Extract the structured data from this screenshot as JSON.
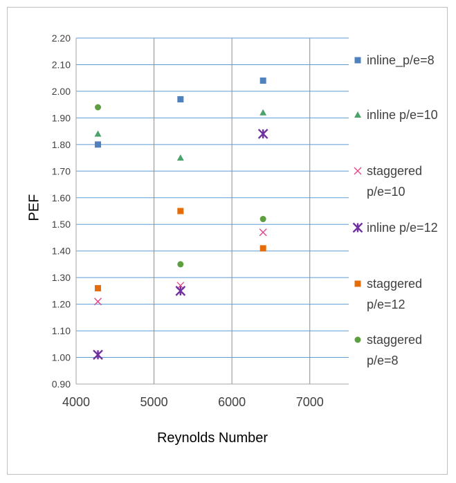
{
  "chart_data": {
    "type": "scatter",
    "title": "",
    "xlabel": "Reynolds Number",
    "ylabel": "PEF",
    "xlim": [
      4000,
      7500
    ],
    "ylim": [
      0.9,
      2.2
    ],
    "x_ticks": [
      "4000",
      "5000",
      "6000",
      "7000"
    ],
    "y_ticks": [
      "0.90",
      "1.00",
      "1.10",
      "1.20",
      "1.30",
      "1.40",
      "1.50",
      "1.60",
      "1.70",
      "1.80",
      "1.90",
      "2.00",
      "2.10",
      "2.20"
    ],
    "grid": true,
    "legend_position": "right",
    "series": [
      {
        "name": "inline_p/e=8",
        "marker": "square",
        "color": "#4f81bd",
        "x": [
          4280,
          5340,
          6400
        ],
        "y": [
          1.8,
          1.97,
          2.04
        ]
      },
      {
        "name": "inline p/e=10",
        "marker": "triangle",
        "color": "#4ba36c",
        "x": [
          4280,
          5340,
          6400
        ],
        "y": [
          1.84,
          1.75,
          1.92
        ]
      },
      {
        "name": "staggered p/e=10",
        "marker": "x",
        "color": "#e0448a",
        "x": [
          4280,
          5340,
          6400
        ],
        "y": [
          1.21,
          1.27,
          1.47
        ]
      },
      {
        "name": "inline p/e=12",
        "marker": "star",
        "color": "#7030a0",
        "x": [
          4280,
          5340,
          6400
        ],
        "y": [
          1.01,
          1.25,
          1.84
        ]
      },
      {
        "name": "staggered p/e=12",
        "marker": "square",
        "color": "#e46c0a",
        "x": [
          4280,
          5340,
          6400
        ],
        "y": [
          1.26,
          1.55,
          1.41
        ]
      },
      {
        "name": "staggered p/e=8",
        "marker": "circle",
        "color": "#5d9e3f",
        "x": [
          4280,
          5340,
          6400
        ],
        "y": [
          1.94,
          1.35,
          1.52
        ]
      }
    ],
    "legend_lines": [
      [
        "inline_p/e=8"
      ],
      [
        "inline p/e=10"
      ],
      [
        "staggered",
        "p/e=10"
      ],
      [
        "inline p/e=12"
      ],
      [
        "staggered",
        "p/e=12"
      ],
      [
        "staggered",
        "p/e=8"
      ]
    ]
  }
}
